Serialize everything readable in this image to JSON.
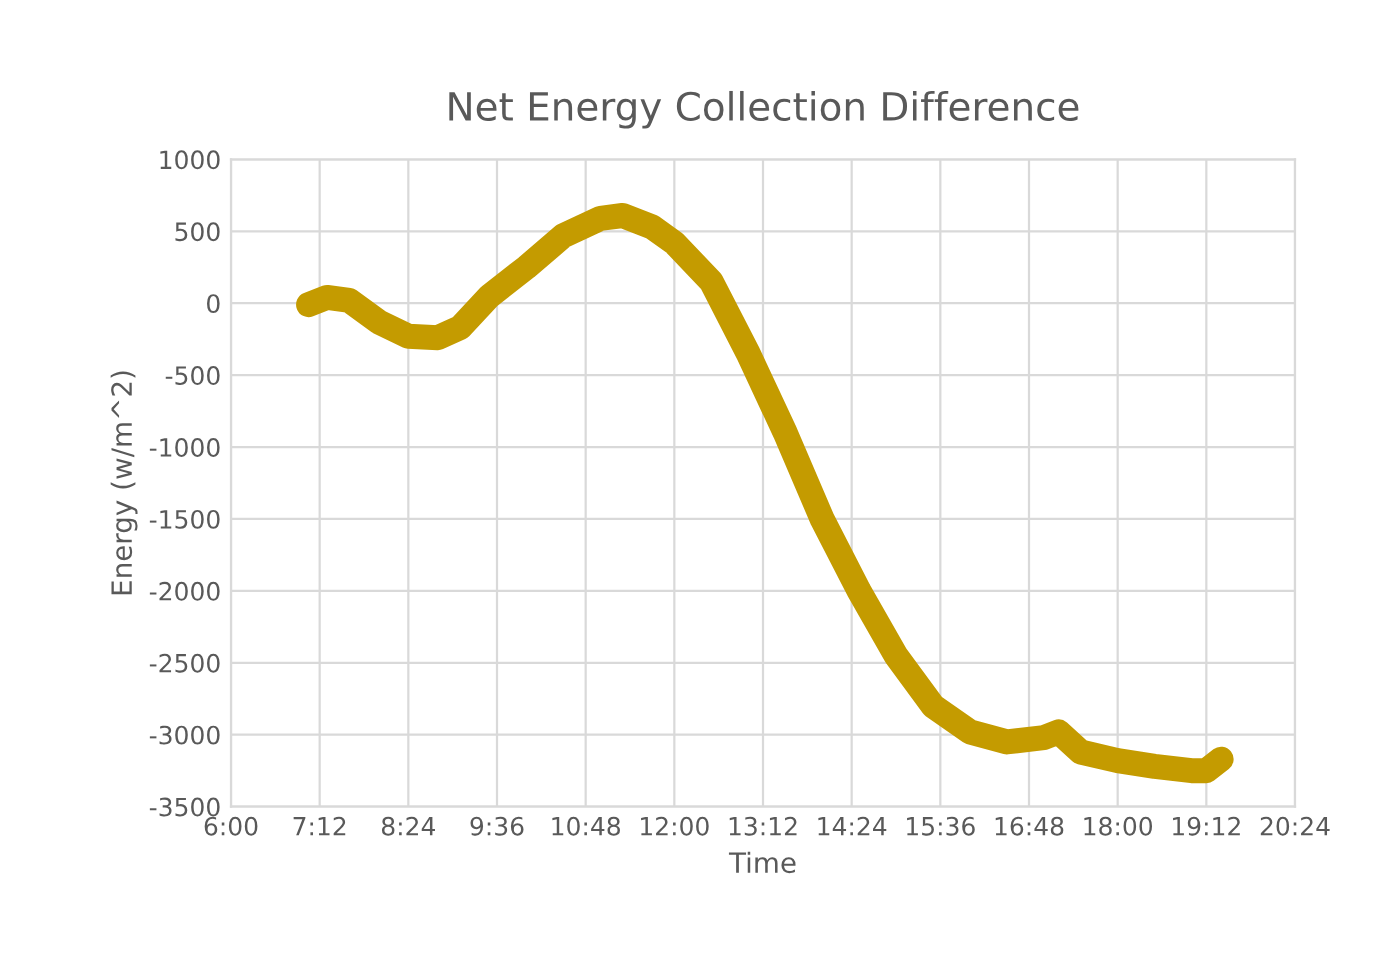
{
  "chart_data": {
    "type": "line",
    "title": "Net Energy Collection Difference",
    "xlabel": "Time",
    "ylabel": "Energy (w/m^2)",
    "x": [
      7.05,
      7.3,
      7.6,
      8.0,
      8.4,
      8.8,
      9.1,
      9.5,
      10.0,
      10.5,
      11.0,
      11.3,
      11.7,
      12.0,
      12.5,
      13.0,
      13.5,
      14.0,
      14.5,
      15.0,
      15.5,
      16.0,
      16.5,
      17.0,
      17.2,
      17.5,
      18.0,
      18.5,
      19.0,
      19.2,
      19.4
    ],
    "series": [
      {
        "color": "#c49b00",
        "values": [
          -10,
          40,
          20,
          -130,
          -230,
          -240,
          -170,
          50,
          250,
          470,
          590,
          610,
          530,
          420,
          150,
          -350,
          -900,
          -1500,
          -2000,
          -2450,
          -2800,
          -2980,
          -3050,
          -3020,
          -2980,
          -3120,
          -3180,
          -3220,
          -3250,
          -3250,
          -3170
        ]
      }
    ],
    "xlim": [
      6,
      20.4
    ],
    "xticks": [
      {
        "value": 6,
        "label": "6:00"
      },
      {
        "value": 7.2,
        "label": "7:12"
      },
      {
        "value": 8.4,
        "label": "8:24"
      },
      {
        "value": 9.6,
        "label": "9:36"
      },
      {
        "value": 10.8,
        "label": "10:48"
      },
      {
        "value": 12,
        "label": "12:00"
      },
      {
        "value": 13.2,
        "label": "13:12"
      },
      {
        "value": 14.4,
        "label": "14:24"
      },
      {
        "value": 15.6,
        "label": "15:36"
      },
      {
        "value": 16.8,
        "label": "16:48"
      },
      {
        "value": 18,
        "label": "18:00"
      },
      {
        "value": 19.2,
        "label": "19:12"
      },
      {
        "value": 20.4,
        "label": "20:24"
      }
    ],
    "ylim": [
      -3500,
      1000
    ],
    "yticks": [
      -3500,
      -3000,
      -2500,
      -2000,
      -1500,
      -1000,
      -500,
      0,
      500,
      1000
    ],
    "grid": true,
    "legend": false,
    "line_style": "solid"
  }
}
